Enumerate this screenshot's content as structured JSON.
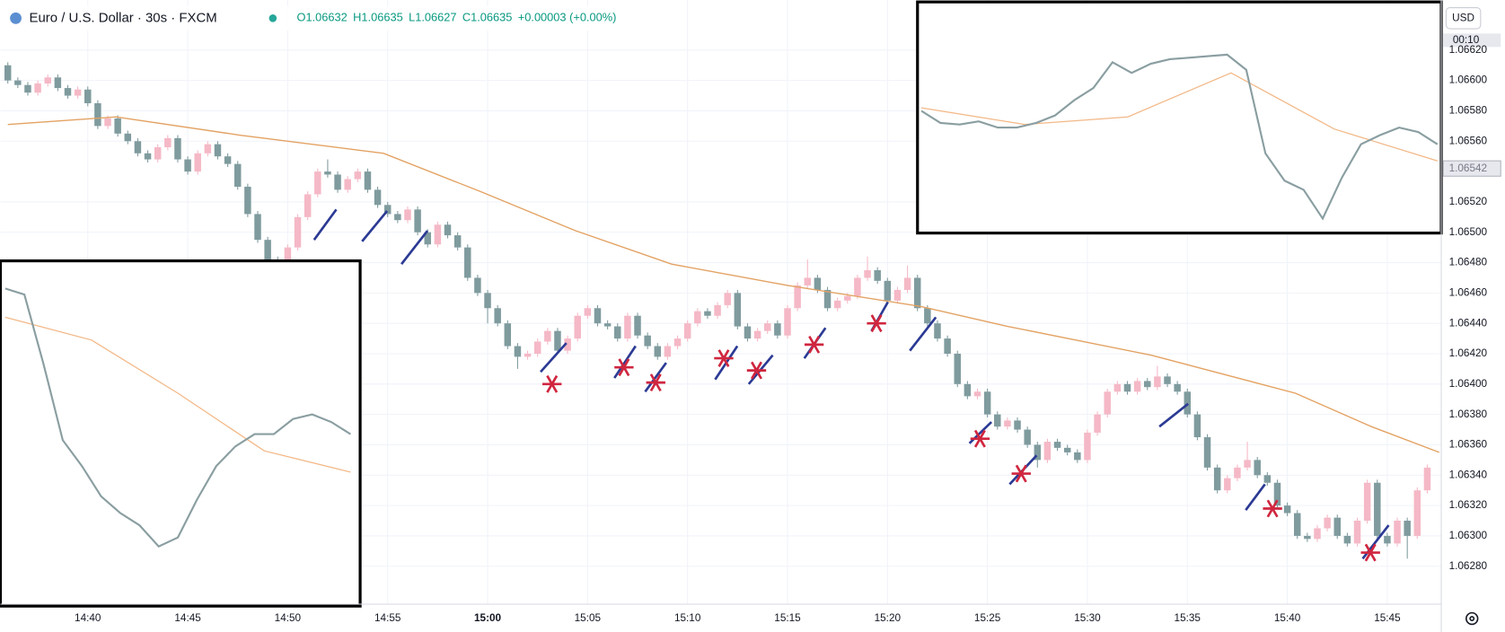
{
  "header": {
    "symbol": "Euro / U.S. Dollar · 30s · FXCM",
    "open": "O1.06632",
    "high": "H1.06635",
    "low": "L1.06627",
    "close": "C1.06635",
    "change": "+0.00003 (+0.00%)"
  },
  "currency": "USD",
  "chart_data": {
    "type": "candlestick",
    "t": [
      36,
      36.5,
      37,
      37.5,
      38,
      38.5,
      39,
      39.5,
      40,
      40.5,
      41,
      41.5,
      42,
      42.5,
      43,
      43.5,
      44,
      44.5,
      45,
      45.5,
      46,
      46.5,
      47,
      47.5,
      48,
      48.5,
      49,
      49.5,
      50,
      50.5,
      51,
      51.5,
      52,
      52.5,
      53,
      53.5,
      54,
      54.5,
      55,
      55.5,
      56,
      56.5,
      57,
      57.5,
      58,
      58.5,
      59,
      59.5,
      60,
      60.5,
      61,
      61.5,
      62,
      62.5,
      63,
      63.5,
      64,
      64.5,
      65,
      65.5,
      66,
      66.5,
      67,
      67.5,
      68,
      68.5,
      69,
      69.5,
      70,
      70.5,
      71,
      71.5,
      72,
      72.5,
      73,
      73.5,
      74,
      74.5,
      75,
      75.5,
      76,
      76.5,
      77,
      77.5,
      78,
      78.5,
      79,
      79.5,
      80,
      80.5,
      81,
      81.5,
      82,
      82.5,
      83,
      83.5,
      84,
      84.5,
      85,
      85.5,
      86,
      86.5,
      87,
      87.5,
      88,
      88.5,
      89,
      89.5,
      90,
      90.5,
      91,
      91.5,
      92,
      92.5,
      93,
      93.5,
      94,
      94.5,
      95,
      95.5,
      96,
      96.5,
      97,
      97.5,
      98,
      98.5,
      99,
      99.5,
      100,
      100.5,
      101,
      101.5,
      102,
      102.5,
      103,
      103.5,
      104,
      104.5,
      105,
      105.5,
      106,
      106.5,
      107
    ],
    "open": [
      1.0661,
      1.066,
      1.06597,
      1.06592,
      1.06598,
      1.06602,
      1.06595,
      1.0659,
      1.06594,
      1.06585,
      1.0657,
      1.06575,
      1.06565,
      1.0656,
      1.06552,
      1.06548,
      1.06556,
      1.06562,
      1.06548,
      1.0654,
      1.06552,
      1.06558,
      1.0655,
      1.06545,
      1.0653,
      1.06512,
      1.06495,
      1.06482,
      1.0648,
      1.0649,
      1.0651,
      1.06525,
      1.0654,
      1.06538,
      1.06528,
      1.06535,
      1.0654,
      1.06528,
      1.06518,
      1.06512,
      1.06508,
      1.06515,
      1.065,
      1.06492,
      1.06505,
      1.06498,
      1.0649,
      1.0647,
      1.0646,
      1.0645,
      1.0644,
      1.06425,
      1.06418,
      1.0642,
      1.06428,
      1.06435,
      1.06422,
      1.0643,
      1.06445,
      1.0645,
      1.0644,
      1.06438,
      1.0643,
      1.06445,
      1.06432,
      1.06425,
      1.06418,
      1.06425,
      1.0643,
      1.0644,
      1.06448,
      1.06445,
      1.06452,
      1.0646,
      1.06438,
      1.0643,
      1.06435,
      1.0644,
      1.06432,
      1.0645,
      1.06465,
      1.0647,
      1.06462,
      1.0645,
      1.06455,
      1.06458,
      1.0647,
      1.06475,
      1.06468,
      1.06455,
      1.06462,
      1.0647,
      1.0645,
      1.0644,
      1.0643,
      1.0642,
      1.064,
      1.06392,
      1.06395,
      1.0638,
      1.06372,
      1.06376,
      1.0637,
      1.0636,
      1.0635,
      1.06362,
      1.06358,
      1.06355,
      1.0635,
      1.06368,
      1.0638,
      1.06395,
      1.064,
      1.06395,
      1.06402,
      1.06398,
      1.06405,
      1.064,
      1.06395,
      1.0638,
      1.06365,
      1.06345,
      1.0633,
      1.06338,
      1.06345,
      1.0635,
      1.0634,
      1.06335,
      1.0632,
      1.06315,
      1.063,
      1.06298,
      1.06305,
      1.06312,
      1.063,
      1.06295,
      1.0631,
      1.06335,
      1.063,
      1.06295,
      1.0631,
      1.063,
      1.0633
    ],
    "high": [
      1.06612,
      1.06602,
      1.06599,
      1.066,
      1.06604,
      1.06604,
      1.06597,
      1.06596,
      1.06596,
      1.06587,
      1.06577,
      1.06577,
      1.06567,
      1.06562,
      1.06554,
      1.06558,
      1.06564,
      1.06564,
      1.0655,
      1.06554,
      1.0656,
      1.0656,
      1.06552,
      1.06547,
      1.06532,
      1.06514,
      1.06497,
      1.06484,
      1.06492,
      1.06512,
      1.06527,
      1.06542,
      1.06548,
      1.0654,
      1.06537,
      1.06542,
      1.06542,
      1.0653,
      1.0652,
      1.06514,
      1.06517,
      1.06517,
      1.06502,
      1.06507,
      1.06507,
      1.065,
      1.06492,
      1.06472,
      1.06462,
      1.06452,
      1.06442,
      1.06427,
      1.06422,
      1.0643,
      1.06437,
      1.06437,
      1.06432,
      1.06447,
      1.06452,
      1.06452,
      1.06442,
      1.0644,
      1.06447,
      1.06447,
      1.06434,
      1.06427,
      1.06427,
      1.06432,
      1.06442,
      1.0645,
      1.0645,
      1.06454,
      1.06462,
      1.06462,
      1.0644,
      1.06437,
      1.06442,
      1.06442,
      1.06452,
      1.06467,
      1.06482,
      1.06472,
      1.06464,
      1.06457,
      1.0646,
      1.06472,
      1.06484,
      1.06477,
      1.0647,
      1.06464,
      1.06478,
      1.06472,
      1.06452,
      1.06442,
      1.06432,
      1.06422,
      1.06402,
      1.06397,
      1.06397,
      1.06382,
      1.06378,
      1.06378,
      1.06372,
      1.06362,
      1.06364,
      1.06364,
      1.0636,
      1.06357,
      1.0637,
      1.06382,
      1.06397,
      1.06402,
      1.06402,
      1.06404,
      1.06404,
      1.06412,
      1.06407,
      1.06402,
      1.06397,
      1.06382,
      1.06367,
      1.06347,
      1.0634,
      1.06347,
      1.06362,
      1.06352,
      1.06342,
      1.06337,
      1.06322,
      1.06317,
      1.06302,
      1.06307,
      1.06314,
      1.06314,
      1.06302,
      1.06312,
      1.06337,
      1.06337,
      1.06302,
      1.06312,
      1.06312,
      1.06332,
      1.06347
    ],
    "low": [
      1.06598,
      1.06595,
      1.0659,
      1.0659,
      1.06596,
      1.06593,
      1.06588,
      1.06588,
      1.06583,
      1.06568,
      1.06568,
      1.06563,
      1.06558,
      1.0655,
      1.06546,
      1.06546,
      1.06554,
      1.06546,
      1.06538,
      1.06538,
      1.0655,
      1.06548,
      1.06543,
      1.06528,
      1.0651,
      1.06493,
      1.0648,
      1.06472,
      1.06478,
      1.06488,
      1.06508,
      1.06523,
      1.06536,
      1.06526,
      1.06526,
      1.06533,
      1.06526,
      1.06516,
      1.0651,
      1.06506,
      1.06506,
      1.06498,
      1.0649,
      1.0649,
      1.06496,
      1.06488,
      1.06468,
      1.06458,
      1.0644,
      1.06438,
      1.06423,
      1.0641,
      1.06416,
      1.06418,
      1.06426,
      1.0642,
      1.0642,
      1.06428,
      1.06443,
      1.06438,
      1.06436,
      1.06428,
      1.06428,
      1.0643,
      1.06423,
      1.06416,
      1.06416,
      1.06423,
      1.06428,
      1.06438,
      1.06443,
      1.06443,
      1.0645,
      1.06436,
      1.06428,
      1.06428,
      1.06433,
      1.0643,
      1.0643,
      1.06448,
      1.06463,
      1.0646,
      1.06448,
      1.06448,
      1.06453,
      1.06456,
      1.06468,
      1.06466,
      1.06453,
      1.06453,
      1.0646,
      1.06448,
      1.06438,
      1.06428,
      1.06418,
      1.06398,
      1.0639,
      1.0639,
      1.06378,
      1.0637,
      1.0637,
      1.06368,
      1.06358,
      1.06345,
      1.06348,
      1.06356,
      1.06353,
      1.06348,
      1.06348,
      1.06366,
      1.06378,
      1.06393,
      1.06393,
      1.06393,
      1.06396,
      1.06396,
      1.06398,
      1.06393,
      1.06378,
      1.06363,
      1.06343,
      1.06328,
      1.06328,
      1.06336,
      1.06343,
      1.06338,
      1.06333,
      1.06318,
      1.06313,
      1.06298,
      1.06296,
      1.06296,
      1.06303,
      1.06298,
      1.06293,
      1.06293,
      1.06308,
      1.06298,
      1.06293,
      1.06293,
      1.06285,
      1.06298,
      1.06328
    ],
    "close": [
      1.066,
      1.06597,
      1.06592,
      1.06598,
      1.06602,
      1.06595,
      1.0659,
      1.06594,
      1.06585,
      1.0657,
      1.06575,
      1.06565,
      1.0656,
      1.06552,
      1.06548,
      1.06556,
      1.06562,
      1.06548,
      1.0654,
      1.06552,
      1.06558,
      1.0655,
      1.06545,
      1.0653,
      1.06512,
      1.06495,
      1.06482,
      1.0648,
      1.0649,
      1.0651,
      1.06525,
      1.0654,
      1.06538,
      1.06528,
      1.06535,
      1.0654,
      1.06528,
      1.06518,
      1.06512,
      1.06508,
      1.06515,
      1.065,
      1.06492,
      1.06505,
      1.06498,
      1.0649,
      1.0647,
      1.0646,
      1.0645,
      1.0644,
      1.06425,
      1.06418,
      1.0642,
      1.06428,
      1.06435,
      1.06422,
      1.0643,
      1.06445,
      1.0645,
      1.0644,
      1.06438,
      1.0643,
      1.06445,
      1.06432,
      1.06425,
      1.06418,
      1.06425,
      1.0643,
      1.0644,
      1.06448,
      1.06445,
      1.06452,
      1.0646,
      1.06438,
      1.0643,
      1.06435,
      1.0644,
      1.06432,
      1.0645,
      1.06465,
      1.0647,
      1.06462,
      1.0645,
      1.06455,
      1.06458,
      1.0647,
      1.06475,
      1.06468,
      1.06455,
      1.06462,
      1.0647,
      1.0645,
      1.0644,
      1.0643,
      1.0642,
      1.064,
      1.06392,
      1.06395,
      1.0638,
      1.06372,
      1.06376,
      1.0637,
      1.0636,
      1.0635,
      1.06362,
      1.06358,
      1.06355,
      1.0635,
      1.06368,
      1.0638,
      1.06395,
      1.064,
      1.06395,
      1.06402,
      1.06398,
      1.06405,
      1.064,
      1.06395,
      1.0638,
      1.06365,
      1.06345,
      1.0633,
      1.06338,
      1.06345,
      1.0635,
      1.0634,
      1.06335,
      1.0632,
      1.06315,
      1.063,
      1.06298,
      1.06305,
      1.06312,
      1.063,
      1.06295,
      1.0631,
      1.06335,
      1.063,
      1.06295,
      1.0631,
      1.063,
      1.0633,
      1.06345
    ],
    "up_color": "#f5b8c6",
    "down_color": "#7f9b9e",
    "ma": {
      "color": "#e3a263",
      "t": [
        36,
        41.4,
        47.6,
        54.8,
        59.6,
        64.4,
        69.2,
        75,
        81.7,
        86,
        93.2,
        100.4,
        104.2,
        107.6
      ],
      "values": [
        1.06571,
        1.06576,
        1.06564,
        1.06552,
        1.06527,
        1.06501,
        1.06479,
        1.06465,
        1.06451,
        1.06438,
        1.06419,
        1.06394,
        1.06372,
        1.06355
      ]
    },
    "stars": {
      "color": "#d0263f",
      "points": [
        [
          63.22,
          1.064
        ],
        [
          66.82,
          1.06411
        ],
        [
          68.41,
          1.06401
        ],
        [
          71.81,
          1.06417
        ],
        [
          73.45,
          1.06409
        ],
        [
          76.33,
          1.06426
        ],
        [
          79.45,
          1.0644
        ],
        [
          84.63,
          1.06364
        ],
        [
          86.69,
          1.06341
        ],
        [
          99.26,
          1.06318
        ],
        [
          104.16,
          1.06289
        ]
      ]
    },
    "lines": {
      "color": "#2b3a94",
      "segments": [
        [
          51.32,
          1.06495,
          52.43,
          1.06515
        ],
        [
          53.72,
          1.06494,
          54.97,
          1.06514
        ],
        [
          55.69,
          1.06479,
          56.99,
          1.06501
        ],
        [
          62.65,
          1.06408,
          63.94,
          1.06427
        ],
        [
          66.34,
          1.06404,
          67.4,
          1.06425
        ],
        [
          67.88,
          1.06395,
          68.93,
          1.06414
        ],
        [
          71.38,
          1.06403,
          72.49,
          1.06425
        ],
        [
          73.06,
          1.064,
          74.26,
          1.06419
        ],
        [
          75.84,
          1.06417,
          76.9,
          1.06437
        ],
        [
          79.2,
          1.06435,
          80.02,
          1.06454
        ],
        [
          81.12,
          1.06422,
          82.42,
          1.06444
        ],
        [
          84.1,
          1.06361,
          85.2,
          1.06375
        ],
        [
          86.11,
          1.06334,
          87.46,
          1.06353
        ],
        [
          93.6,
          1.06372,
          95.04,
          1.06387
        ],
        [
          97.92,
          1.06317,
          98.88,
          1.06334
        ],
        [
          103.77,
          1.06285,
          105.07,
          1.06307
        ]
      ]
    },
    "xlim": [
      35.63,
      107.7
    ],
    "ylim": [
      1.06255,
      1.06653
    ],
    "xticks": [
      {
        "value": 40,
        "label": "14:40"
      },
      {
        "value": 45,
        "label": "14:45"
      },
      {
        "value": 50,
        "label": "14:50"
      },
      {
        "value": 55,
        "label": "14:55"
      },
      {
        "value": 60,
        "label": "15:00"
      },
      {
        "value": 65,
        "label": "15:05"
      },
      {
        "value": 70,
        "label": "15:10"
      },
      {
        "value": 75,
        "label": "15:15"
      },
      {
        "value": 80,
        "label": "15:20"
      },
      {
        "value": 85,
        "label": "15:25"
      },
      {
        "value": 90,
        "label": "15:30"
      },
      {
        "value": 95,
        "label": "15:35"
      },
      {
        "value": 100,
        "label": "15:40"
      },
      {
        "value": 105,
        "label": "15:45"
      }
    ],
    "yticks": [
      {
        "value": 1.0662,
        "label": "1.06620"
      },
      {
        "value": 1.066,
        "label": "1.06600"
      },
      {
        "value": 1.0658,
        "label": "1.06580"
      },
      {
        "value": 1.0656,
        "label": "1.06560"
      },
      {
        "value": 1.0652,
        "label": "1.06520"
      },
      {
        "value": 1.065,
        "label": "1.06500"
      },
      {
        "value": 1.0648,
        "label": "1.06480"
      },
      {
        "value": 1.0646,
        "label": "1.06460"
      },
      {
        "value": 1.0644,
        "label": "1.06440"
      },
      {
        "value": 1.0642,
        "label": "1.06420"
      },
      {
        "value": 1.064,
        "label": "1.06400"
      },
      {
        "value": 1.0638,
        "label": "1.06380"
      },
      {
        "value": 1.0636,
        "label": "1.06360"
      },
      {
        "value": 1.0634,
        "label": "1.06340"
      },
      {
        "value": 1.0632,
        "label": "1.06320"
      },
      {
        "value": 1.063,
        "label": "1.06300"
      },
      {
        "value": 1.0628,
        "label": "1.06280"
      }
    ],
    "grid": true,
    "price_marker": {
      "value": 1.06542,
      "label": "1.06542"
    },
    "countdown": "00:10",
    "insets": [
      {
        "color": "#8a9ea1",
        "ma_color": "#f2b887",
        "values": [
          1.06463,
          1.06459,
          1.06413,
          1.06363,
          1.06346,
          1.06326,
          1.06315,
          1.06307,
          1.06293,
          1.06299,
          1.06324,
          1.06346,
          1.06359,
          1.06367,
          1.06367,
          1.06377,
          1.0638,
          1.06375,
          1.06367
        ],
        "ma": [
          1.06444,
          1.06429,
          1.06394,
          1.06356,
          1.06342
        ]
      },
      {
        "color": "#8a9ea1",
        "ma_color": "#f2b887",
        "values": [
          1.0658,
          1.06572,
          1.06571,
          1.06573,
          1.06569,
          1.06569,
          1.06572,
          1.06577,
          1.06587,
          1.06595,
          1.06612,
          1.06605,
          1.06611,
          1.06614,
          1.06615,
          1.06616,
          1.06617,
          1.06607,
          1.06552,
          1.06534,
          1.06528,
          1.06509,
          1.06536,
          1.06558,
          1.06564,
          1.06569,
          1.06566,
          1.06558
        ],
        "ma": [
          1.06582,
          1.06571,
          1.06576,
          1.06605,
          1.06568,
          1.06547
        ]
      }
    ]
  }
}
